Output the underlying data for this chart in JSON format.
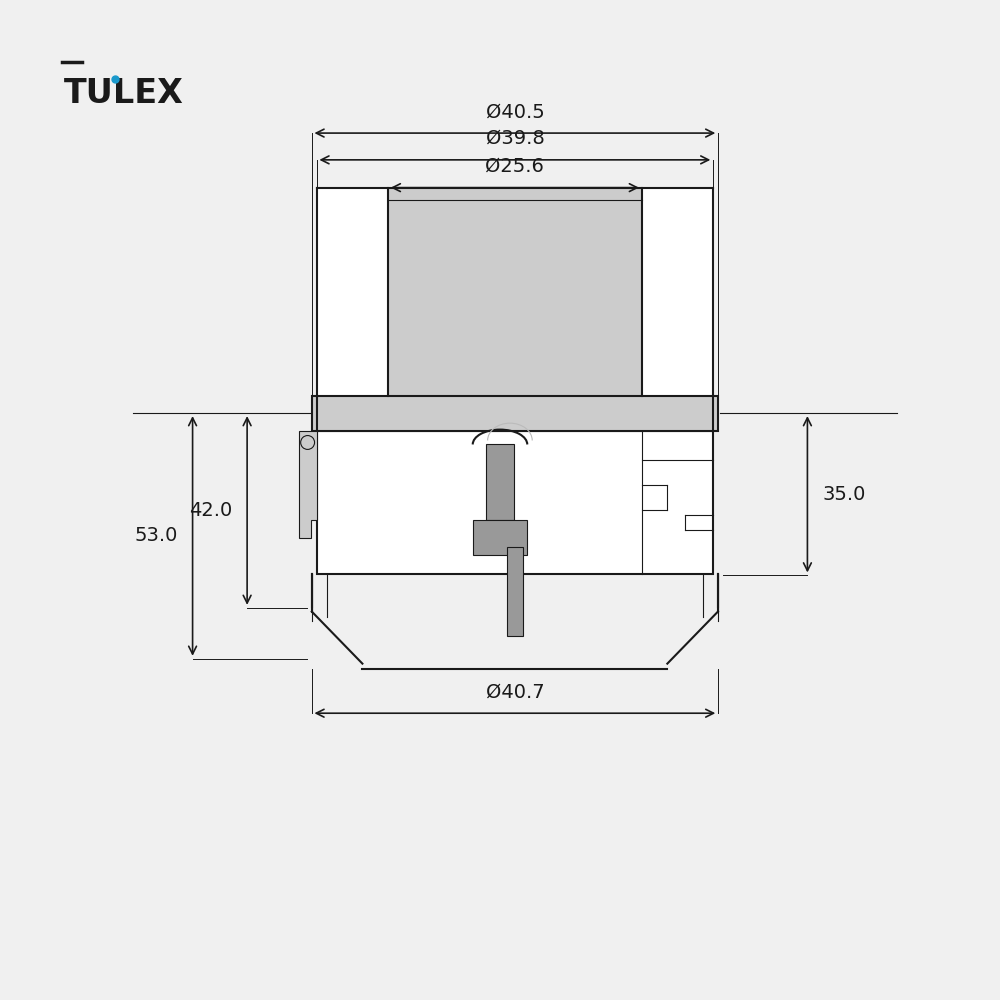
{
  "bg_color": "#f0f0f0",
  "line_color": "#1a1a1a",
  "dim_color": "#1a1a1a",
  "gray_fill": "#999999",
  "light_gray": "#cccccc",
  "mid_gray": "#bbbbbb",
  "white_fill": "#ffffff",
  "logo_text": "TULEX",
  "logo_color_main": "#1a1a1a",
  "logo_color_drop": "#1a99cc",
  "dim_405": "Ø40.5",
  "dim_398": "Ø39.8",
  "dim_256": "Ø25.6",
  "dim_407": "Ø40.7",
  "dim_530": "53.0",
  "dim_420": "42.0",
  "dim_350": "35.0",
  "dim_fontsize": 14,
  "logo_fontsize": 24
}
